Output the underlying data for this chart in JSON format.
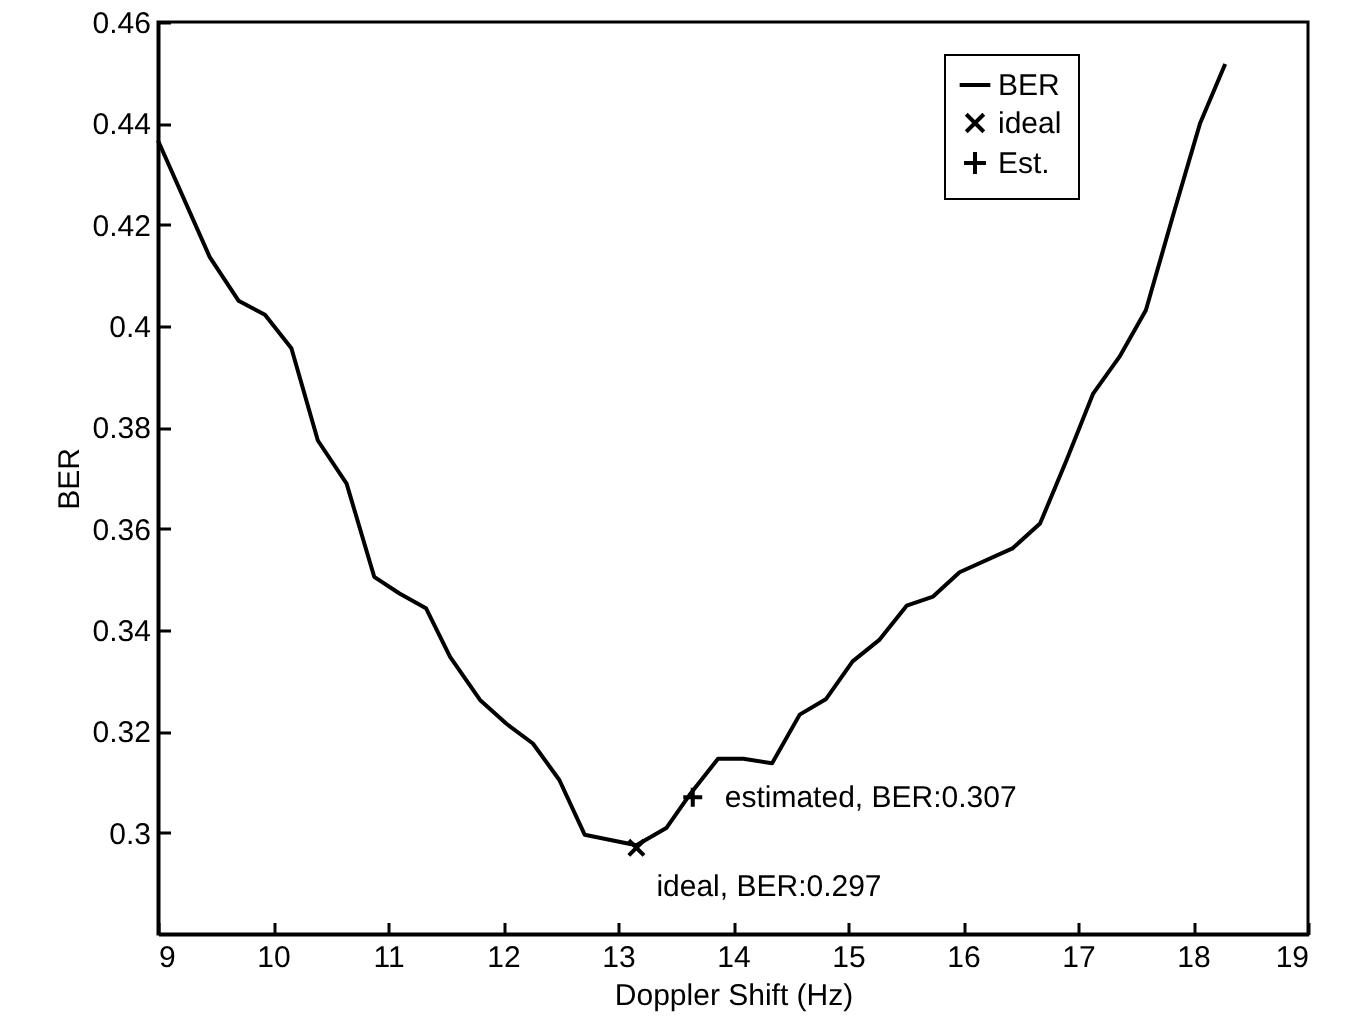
{
  "chart_data": {
    "type": "line",
    "xlabel": "Doppler Shift (Hz)",
    "ylabel": "BER",
    "xlim": [
      9,
      19
    ],
    "xticks": [
      9,
      10,
      11,
      12,
      13,
      14,
      15,
      16,
      17,
      18,
      19
    ],
    "ylim": [
      0.28,
      0.46
    ],
    "yticks": [
      0.3,
      0.32,
      0.34,
      0.36,
      0.38,
      0.4,
      0.42,
      0.44,
      0.46
    ],
    "grid": false,
    "legend": "top right",
    "series": [
      {
        "name": "BER",
        "color": "#000000",
        "marker": "none",
        "line_style": "solid",
        "x": [
          9.0,
          9.45,
          9.7,
          9.93,
          10.16,
          10.39,
          10.64,
          10.88,
          11.1,
          11.33,
          11.54,
          11.8,
          12.03,
          12.26,
          12.49,
          12.71,
          13.16,
          13.42,
          13.63,
          13.87,
          14.09,
          14.34,
          14.58,
          14.81,
          15.04,
          15.27,
          15.51,
          15.74,
          15.97,
          16.43,
          16.67,
          16.9,
          17.13,
          17.36,
          17.59,
          17.83,
          18.06,
          18.28
        ],
        "values": [
          0.4366,
          0.4136,
          0.405,
          0.4022,
          0.3956,
          0.3774,
          0.3689,
          0.3505,
          0.3472,
          0.3443,
          0.3347,
          0.3262,
          0.3215,
          0.3176,
          0.3104,
          0.2996,
          0.2975,
          0.3009,
          0.3077,
          0.3146,
          0.3146,
          0.3137,
          0.3233,
          0.3264,
          0.3338,
          0.338,
          0.3448,
          0.3466,
          0.3514,
          0.3561,
          0.361,
          0.3735,
          0.3866,
          0.3939,
          0.4031,
          0.4221,
          0.4399,
          0.4517
        ]
      },
      {
        "name": "ideal",
        "type": "scatter",
        "color": "#000000",
        "marker": "x",
        "x": [
          13.16
        ],
        "values": [
          0.297
        ]
      },
      {
        "name": "Est.",
        "type": "scatter",
        "color": "#000000",
        "marker": "cross",
        "x": [
          13.65
        ],
        "values": [
          0.307
        ]
      }
    ],
    "annotations": [
      {
        "text": "ideal, BER:0.297",
        "x": 13.16,
        "y": 0.297
      },
      {
        "text": "estimated, BER:0.307",
        "x": 13.65,
        "y": 0.307
      }
    ]
  }
}
